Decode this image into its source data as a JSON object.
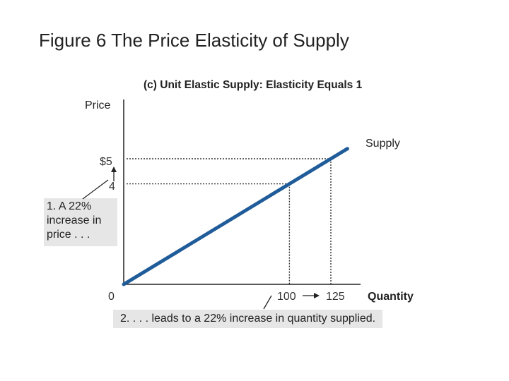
{
  "chart_data": {
    "type": "line",
    "title": "Figure 6 The Price Elasticity of Supply",
    "subtitle": "(c) Unit Elastic Supply: Elasticity Equals 1",
    "xlabel": "Quantity",
    "ylabel": "Price",
    "series": [
      {
        "name": "Supply",
        "color": "#1f5c99",
        "x": [
          0,
          125
        ],
        "y": [
          0,
          5
        ]
      }
    ],
    "x_ticks": [
      {
        "value": 0,
        "label": "0"
      },
      {
        "value": 100,
        "label": "100"
      },
      {
        "value": 125,
        "label": "125"
      }
    ],
    "y_ticks": [
      {
        "value": 4,
        "label": "4"
      },
      {
        "value": 5,
        "label": "$5"
      }
    ],
    "reference_points": [
      {
        "x": 100,
        "y": 4
      },
      {
        "x": 125,
        "y": 5
      }
    ],
    "annotations": [
      {
        "text": "1. A 22% increase in price . . ."
      },
      {
        "text": "2. . . . leads to a 22% increase in quantity supplied."
      }
    ],
    "grid": false
  }
}
